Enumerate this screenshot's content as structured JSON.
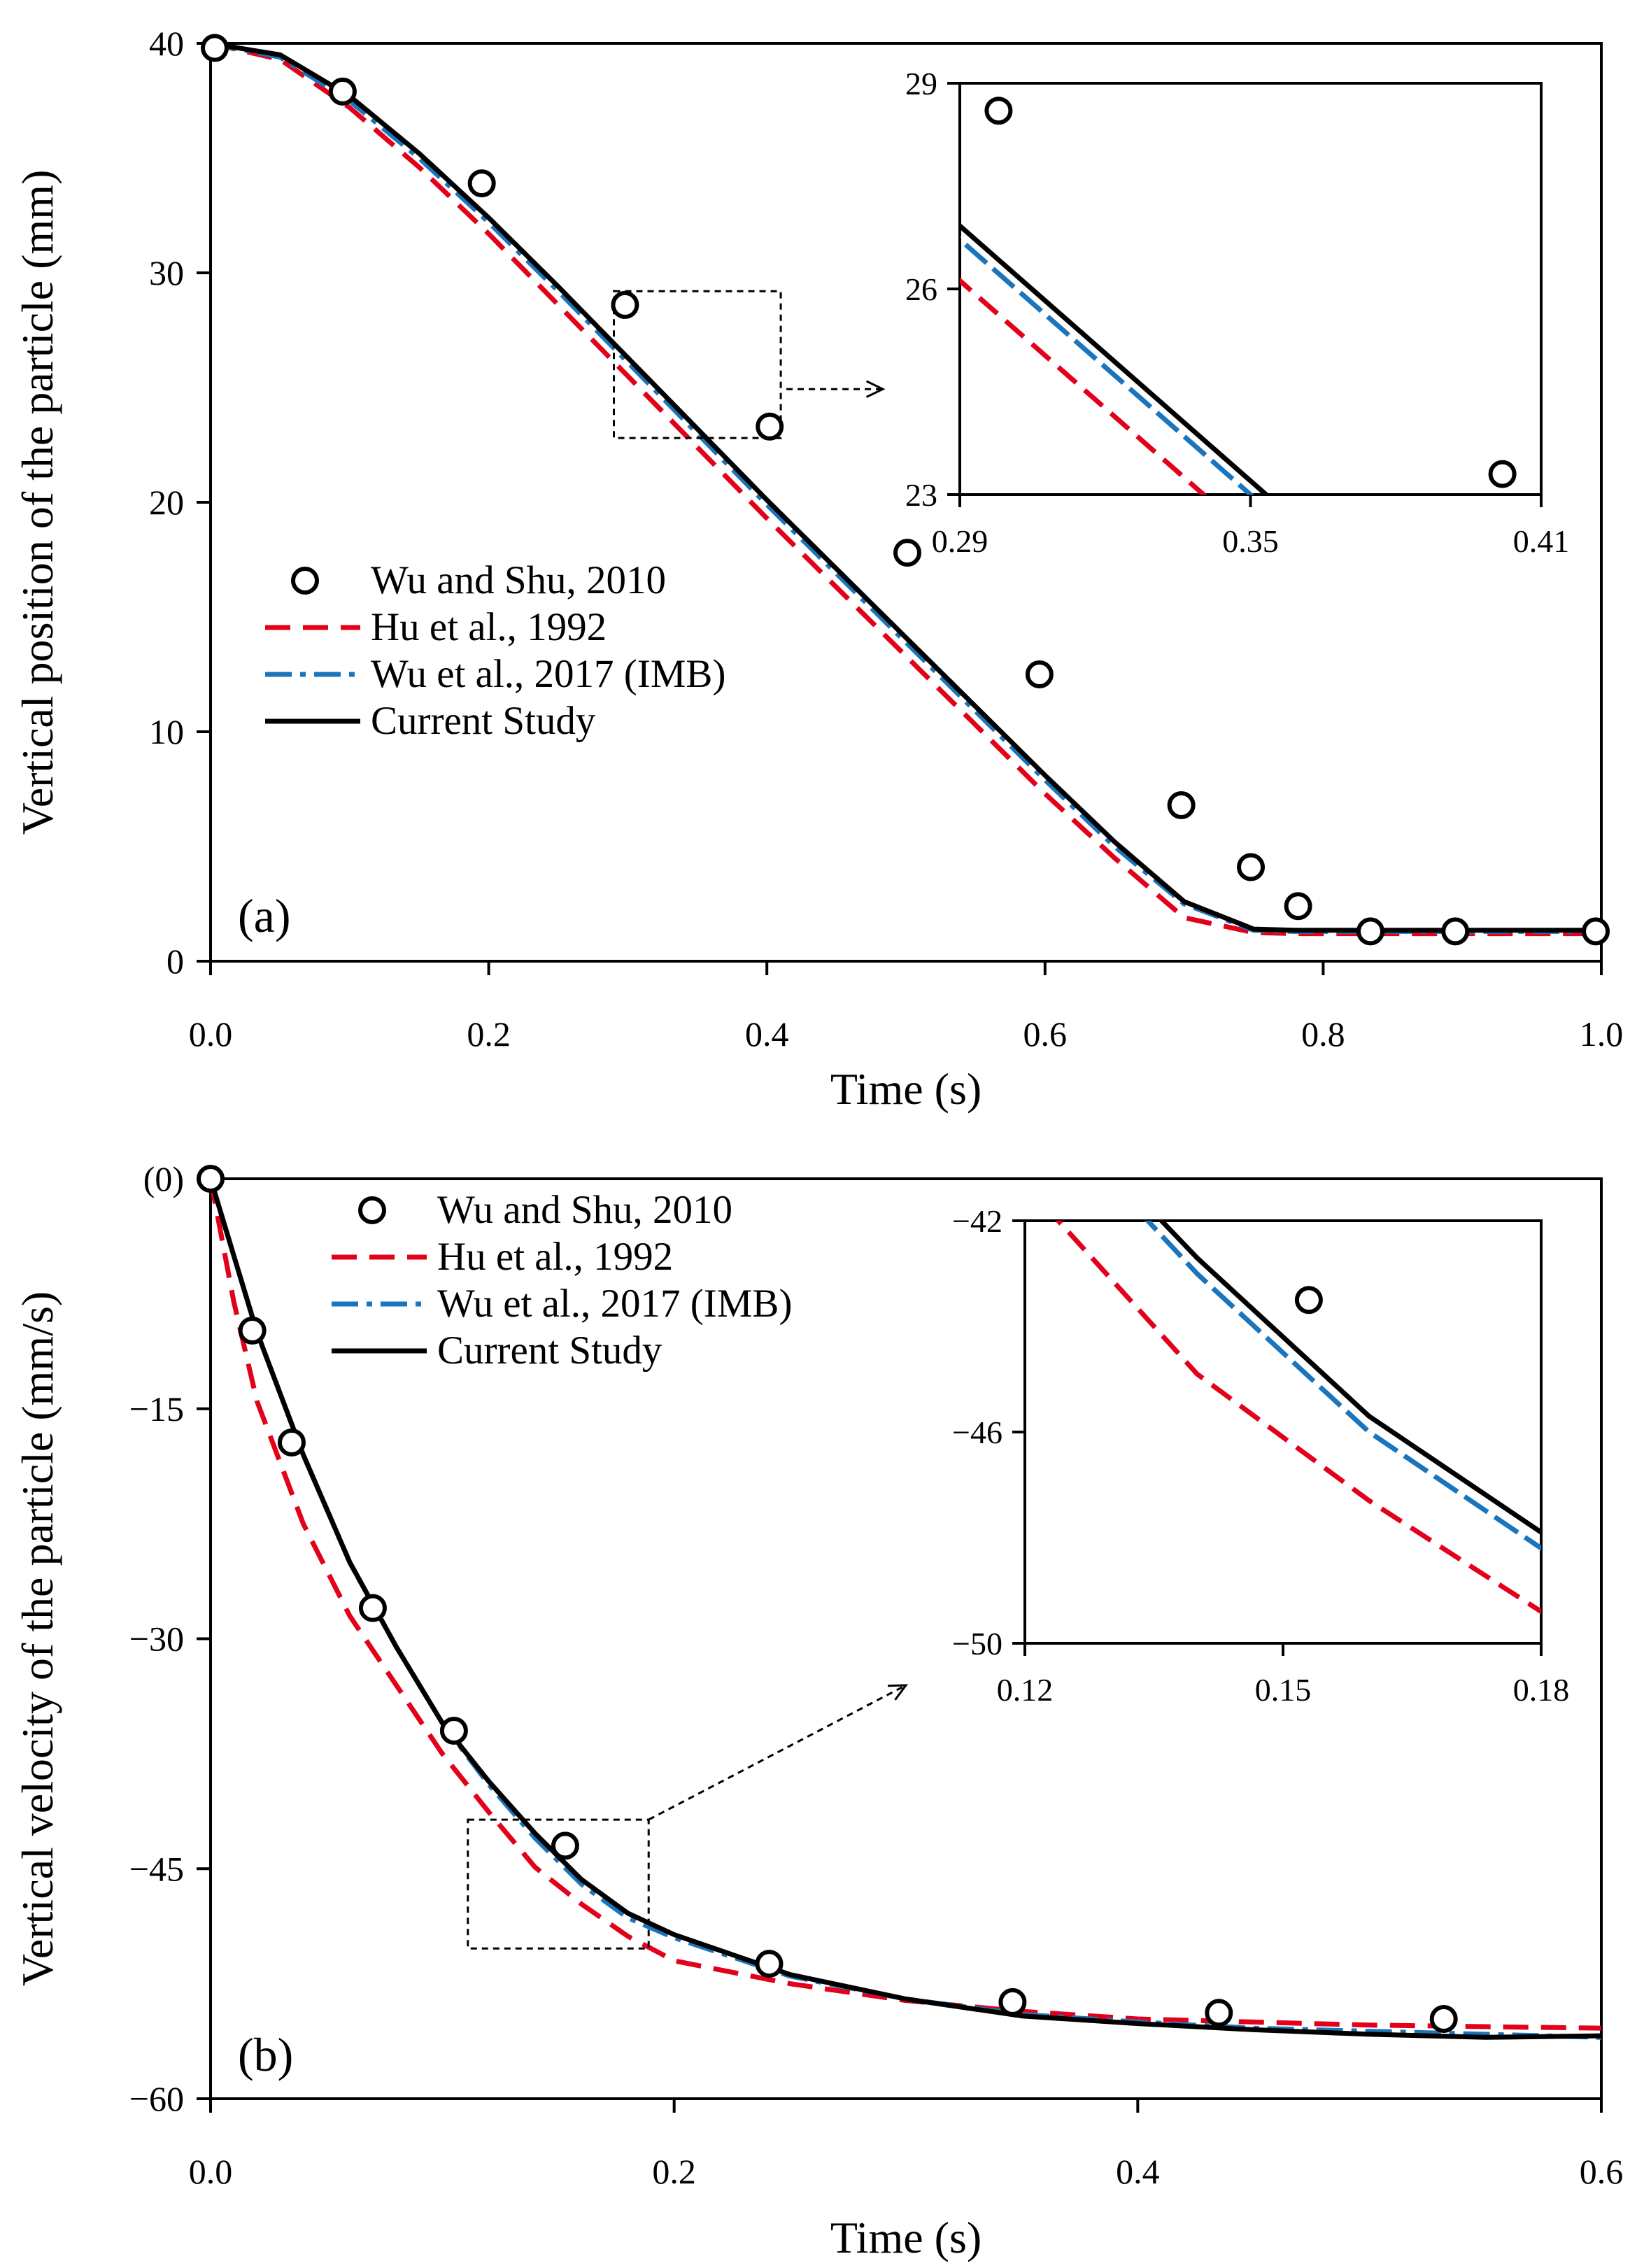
{
  "colors": {
    "wu_shu": "#000000",
    "hu": "#e3001b",
    "wu_imb": "#1b75bc",
    "current": "#000000"
  },
  "chart_data": [
    {
      "type": "line",
      "panel_label": "(a)",
      "xlabel": "Time (s)",
      "ylabel": "Vertical position of the particle (mm)",
      "xlim": [
        0,
        1.0
      ],
      "ylim": [
        0,
        40
      ],
      "xticks": [
        0,
        0.2,
        0.4,
        0.6,
        0.8,
        1.0
      ],
      "xtick_labels": [
        "0.0",
        "0.2",
        "0.4",
        "0.6",
        "0.8",
        "1.0"
      ],
      "yticks": [
        0,
        10,
        20,
        30,
        40
      ],
      "ytick_labels": [
        "0",
        "10",
        "20",
        "30",
        "40"
      ],
      "legend": [
        "Wu and Shu, 2010",
        "Hu et al., 1992",
        "Wu et al., 2017 (IMB)",
        "Current Study"
      ],
      "legend_position": "center-left",
      "series": [
        {
          "name": "Wu and Shu, 2010",
          "style": "marker",
          "x": [
            0.003,
            0.095,
            0.195,
            0.298,
            0.402,
            0.501,
            0.596,
            0.698,
            0.748,
            0.782,
            0.834,
            0.895,
            0.996
          ],
          "y": [
            39.8,
            37.9,
            33.9,
            28.6,
            23.3,
            17.8,
            12.5,
            6.8,
            4.1,
            2.4,
            1.3,
            1.3,
            1.3
          ]
        },
        {
          "name": "Hu et al., 1992",
          "style": "dashed",
          "x": [
            0,
            0.05,
            0.1,
            0.15,
            0.2,
            0.25,
            0.3,
            0.35,
            0.4,
            0.45,
            0.5,
            0.55,
            0.6,
            0.65,
            0.7,
            0.75,
            0.78,
            0.8,
            0.85,
            0.9,
            1.0
          ],
          "y": [
            40,
            39.3,
            37.2,
            34.6,
            31.7,
            28.6,
            25.5,
            22.4,
            19.3,
            16.3,
            13.3,
            10.3,
            7.3,
            4.5,
            1.9,
            1.25,
            1.2,
            1.2,
            1.2,
            1.2,
            1.2
          ]
        },
        {
          "name": "Wu et al., 2017 (IMB)",
          "style": "dashdot",
          "x": [
            0,
            0.05,
            0.1,
            0.15,
            0.2,
            0.25,
            0.3,
            0.35,
            0.4,
            0.45,
            0.5,
            0.55,
            0.6,
            0.65,
            0.7,
            0.75,
            0.78,
            0.8,
            0.85,
            0.9,
            1.0
          ],
          "y": [
            40,
            39.4,
            37.5,
            35.0,
            32.2,
            29.2,
            26.1,
            23.0,
            19.9,
            16.9,
            13.9,
            10.9,
            7.9,
            5.0,
            2.5,
            1.35,
            1.3,
            1.3,
            1.3,
            1.3,
            1.3
          ]
        },
        {
          "name": "Current Study",
          "style": "solid",
          "x": [
            0,
            0.05,
            0.1,
            0.15,
            0.2,
            0.25,
            0.3,
            0.35,
            0.4,
            0.45,
            0.5,
            0.55,
            0.6,
            0.65,
            0.7,
            0.75,
            0.78,
            0.8,
            0.85,
            0.9,
            1.0
          ],
          "y": [
            40,
            39.5,
            37.7,
            35.2,
            32.4,
            29.4,
            26.3,
            23.2,
            20.1,
            17.1,
            14.1,
            11.1,
            8.1,
            5.2,
            2.6,
            1.4,
            1.35,
            1.35,
            1.35,
            1.35,
            1.35
          ]
        }
      ],
      "zoom_region": {
        "x": [
          0.29,
          0.41
        ],
        "y": [
          22.8,
          29.2
        ]
      },
      "inset": {
        "xlim": [
          0.29,
          0.41
        ],
        "ylim": [
          23,
          29
        ],
        "xticks": [
          0.29,
          0.35,
          0.41
        ],
        "xtick_labels": [
          "0.29",
          "0.35",
          "0.41"
        ],
        "yticks": [
          23,
          26,
          29
        ],
        "ytick_labels": [
          "23",
          "26",
          "29"
        ]
      }
    },
    {
      "type": "line",
      "panel_label": "(b)",
      "xlabel": "Time (s)",
      "ylabel": "Vertical velocity of the particle (mm/s)",
      "xlim": [
        0,
        0.6
      ],
      "ylim": [
        -60,
        0
      ],
      "xticks": [
        0,
        0.2,
        0.4,
        0.6
      ],
      "xtick_labels": [
        "0.0",
        "0.2",
        "0.4",
        "0.6"
      ],
      "yticks": [
        0,
        -15,
        -30,
        -45,
        -60
      ],
      "ytick_labels": [
        "(0)",
        "−15",
        "−30",
        "−45",
        "−60"
      ],
      "legend": [
        "Wu and Shu, 2010",
        "Hu et al., 1992",
        "Wu et al., 2017 (IMB)",
        "Current Study"
      ],
      "legend_position": "top-center",
      "series": [
        {
          "name": "Wu and Shu, 2010",
          "style": "marker",
          "x": [
            0.0,
            0.018,
            0.035,
            0.07,
            0.105,
            0.153,
            0.241,
            0.346,
            0.435,
            0.532
          ],
          "y": [
            0.0,
            -9.9,
            -17.2,
            -28.0,
            -36.0,
            -43.5,
            -51.2,
            -53.7,
            -54.4,
            -54.8
          ]
        },
        {
          "name": "Hu et al., 1992",
          "style": "dashed",
          "x": [
            0,
            0.01,
            0.02,
            0.04,
            0.06,
            0.08,
            0.1,
            0.12,
            0.14,
            0.16,
            0.18,
            0.2,
            0.25,
            0.3,
            0.35,
            0.4,
            0.45,
            0.5,
            0.55,
            0.6
          ],
          "y": [
            0,
            -8.0,
            -14.5,
            -22.5,
            -28.5,
            -33.0,
            -37.5,
            -41.3,
            -44.9,
            -47.3,
            -49.4,
            -51.0,
            -52.5,
            -53.6,
            -54.3,
            -54.8,
            -55.0,
            -55.2,
            -55.3,
            -55.4
          ]
        },
        {
          "name": "Wu et al., 2017 (IMB)",
          "style": "dashdot",
          "x": [
            0,
            0.01,
            0.02,
            0.04,
            0.06,
            0.08,
            0.1,
            0.12,
            0.14,
            0.16,
            0.18,
            0.2,
            0.25,
            0.3,
            0.35,
            0.4,
            0.45,
            0.5,
            0.55,
            0.6
          ],
          "y": [
            0,
            -5.0,
            -10.0,
            -18.0,
            -25.0,
            -30.5,
            -35.5,
            -39.5,
            -43.0,
            -46.0,
            -48.2,
            -49.5,
            -52.0,
            -53.5,
            -54.5,
            -55.0,
            -55.4,
            -55.6,
            -55.8,
            -56.0
          ]
        },
        {
          "name": "Current Study",
          "style": "solid",
          "x": [
            0,
            0.01,
            0.02,
            0.04,
            0.06,
            0.08,
            0.1,
            0.12,
            0.14,
            0.16,
            0.18,
            0.2,
            0.25,
            0.3,
            0.35,
            0.4,
            0.45,
            0.5,
            0.55,
            0.6
          ],
          "y": [
            0,
            -5.0,
            -10.0,
            -18.0,
            -25.0,
            -30.5,
            -35.5,
            -39.3,
            -42.7,
            -45.7,
            -47.9,
            -49.3,
            -51.9,
            -53.5,
            -54.6,
            -55.1,
            -55.5,
            -55.8,
            -56.0,
            -55.9
          ]
        }
      ],
      "zoom_region": {
        "x": [
          0.111,
          0.189
        ],
        "y": [
          -50.2,
          -41.8
        ]
      },
      "inset": {
        "xlim": [
          0.12,
          0.18
        ],
        "ylim": [
          -50,
          -42
        ],
        "xticks": [
          0.12,
          0.15,
          0.18
        ],
        "xtick_labels": [
          "0.12",
          "0.15",
          "0.18"
        ],
        "yticks": [
          -42,
          -46,
          -50
        ],
        "ytick_labels": [
          "−42",
          "−46",
          "−50"
        ]
      }
    }
  ]
}
